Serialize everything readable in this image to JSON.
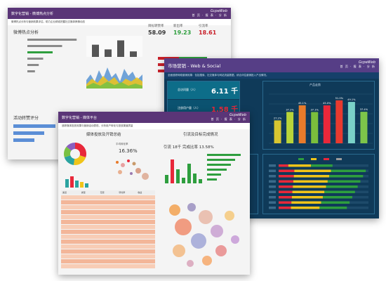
{
  "panel_weibo": {
    "title": "数字化营销 - 微博热点分析",
    "subtitle": "微博热点分析与营销效果评估，助力企业精准把握社交媒体舆情动态",
    "brand": "GcpeWeb",
    "nav": "首 页 · 报 表 · 分 析",
    "section_title": "微博热点分析",
    "section2_title": "活动转赞评分",
    "kpis": [
      {
        "label": "目标转赞率",
        "value": "58.09",
        "color": "#333333"
      },
      {
        "label": "新出率",
        "value": "19.23",
        "color": "#2e9e3e"
      },
      {
        "label": "引流率",
        "value": "18.61",
        "color": "#c8202a"
      }
    ],
    "bar_values": [
      62,
      38,
      84,
      28
    ],
    "h_values": [
      78,
      55,
      40,
      25,
      18,
      12
    ]
  },
  "panel_market": {
    "title": "市场营销 - Web & Social",
    "subtitle": "全面追踪网络营销效果：包括搜索、社交媒体与网站流量数据，综合评估营销投入产出情况。",
    "brand": "GcpeWeb",
    "nav": "首 页 · 报 表 · 分 析",
    "metrics": [
      {
        "label": "总访问量（人）",
        "value": "6.11 千",
        "color": "#ffffff"
      },
      {
        "label": "注册用户量（人）",
        "value": "1.58 千",
        "color": "#e8283a"
      }
    ],
    "chart_title": "产品走势",
    "chart_data": {
      "type": "bar",
      "categories": [
        "",
        "",
        "",
        "",
        "",
        "",
        "",
        ""
      ],
      "values": [
        27.2,
        37.2,
        45.1,
        37.1,
        45.0,
        51.0,
        49.1,
        37.4
      ],
      "data_labels": [
        "27.2%",
        "37.2%",
        "45.1%",
        "37.1%",
        "45.0%",
        "51.0%",
        "49.1%",
        "37.4%"
      ],
      "colors": [
        "#d8c631",
        "#b8d43a",
        "#e87b2b",
        "#7bbf3c",
        "#e8283a",
        "#e83a2f",
        "#7ad2c8",
        "#7dc44a"
      ],
      "ylim": [
        0,
        60
      ]
    },
    "stack_data": {
      "rows": 9,
      "legend": [
        "",
        "",
        "",
        ""
      ]
    }
  },
  "panel_media": {
    "title": "数字化营销 - 媒体平台",
    "subtitle": "追踪媒体投放效果与营销活动表现，分析用户转化与投放渠道质量",
    "brand": "GcpeWeb",
    "nav": "首 页 · 报 表 · 分 析",
    "left_title": "媒体投放及开销总结",
    "right_title": "引流及目标完成情况",
    "ratio_label": "平均转化率",
    "ratio_value": "16.36%",
    "funnel_label": "引流 18千  完成比率 13.58%",
    "donut_segments": [
      {
        "value": 30,
        "color": "#e8283a"
      },
      {
        "value": 22,
        "color": "#f0c419"
      },
      {
        "value": 18,
        "color": "#2aa3a0"
      },
      {
        "value": 16,
        "color": "#7ac143"
      },
      {
        "value": 14,
        "color": "#8a5fbf"
      }
    ],
    "table_headers": [
      "渠道",
      "类型",
      "花费",
      "转化率",
      "收益"
    ],
    "table_rows": 15
  }
}
